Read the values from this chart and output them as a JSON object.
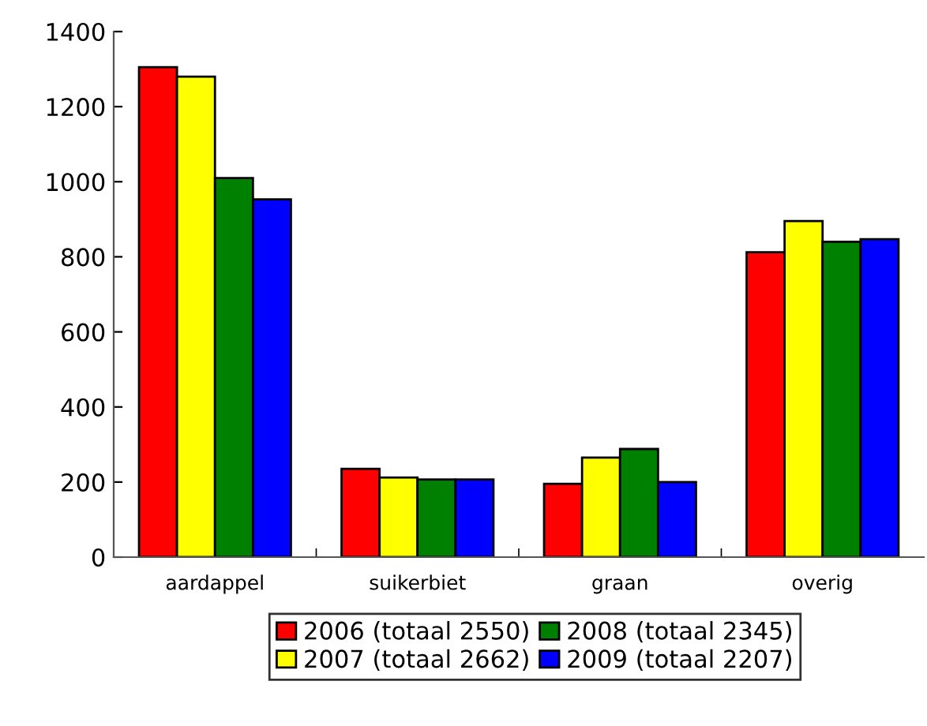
{
  "chart_data": {
    "type": "bar",
    "categories": [
      "aardappel",
      "suikerbiet",
      "graan",
      "overig"
    ],
    "series": [
      {
        "name": "2006 (totaal 2550)",
        "color": "#ff0000",
        "values": [
          1305,
          235,
          195,
          812
        ]
      },
      {
        "name": "2007 (totaal 2662)",
        "color": "#ffff00",
        "values": [
          1280,
          212,
          265,
          895
        ]
      },
      {
        "name": "2008 (totaal 2345)",
        "color": "#008000",
        "values": [
          1010,
          207,
          288,
          840
        ]
      },
      {
        "name": "2009 (totaal 2207)",
        "color": "#0000ff",
        "values": [
          953,
          207,
          200,
          847
        ]
      }
    ],
    "ylim": [
      0,
      1400
    ],
    "yticks": [
      0,
      200,
      400,
      600,
      800,
      1000,
      1200,
      1400
    ],
    "grid": false,
    "legend": "bottom"
  }
}
